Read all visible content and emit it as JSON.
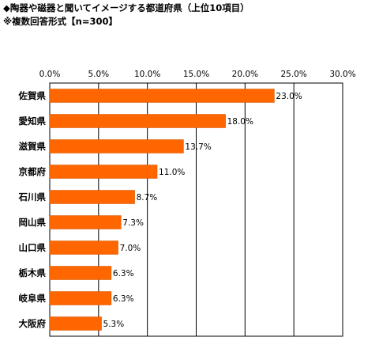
{
  "header": {
    "title": "◆陶器や磁器と聞いてイメージする都道府県（上位10項目）",
    "subtitle": "※複数回答形式【n=300】"
  },
  "colors": {
    "bar": "#FF6600",
    "bar_edge": "#CC5500",
    "grid": "#000000"
  },
  "chart_data": {
    "type": "bar",
    "orientation": "horizontal",
    "title": "◆陶器や磁器と聞いてイメージする都道府県（上位10項目）",
    "subtitle": "※複数回答形式【n=300】",
    "categories": [
      "佐賀県",
      "愛知県",
      "滋賀県",
      "京都府",
      "石川県",
      "岡山県",
      "山口県",
      "栃木県",
      "岐阜県",
      "大阪府"
    ],
    "values": [
      23.0,
      18.0,
      13.7,
      11.0,
      8.7,
      7.3,
      7.0,
      6.3,
      6.3,
      5.3
    ],
    "data_labels": [
      "23.0%",
      "18.0%",
      "13.7%",
      "11.0%",
      "8.7%",
      "7.3%",
      "7.0%",
      "6.3%",
      "6.3%",
      "5.3%"
    ],
    "xlim": [
      0,
      30
    ],
    "xticks": [
      0,
      5,
      10,
      15,
      20,
      25,
      30
    ],
    "xtick_labels": [
      "0.0%",
      "5.0%",
      "10.0%",
      "15.0%",
      "20.0%",
      "25.0%",
      "30.0%"
    ],
    "xaxis_position": "top",
    "grid": true,
    "legend": false
  }
}
